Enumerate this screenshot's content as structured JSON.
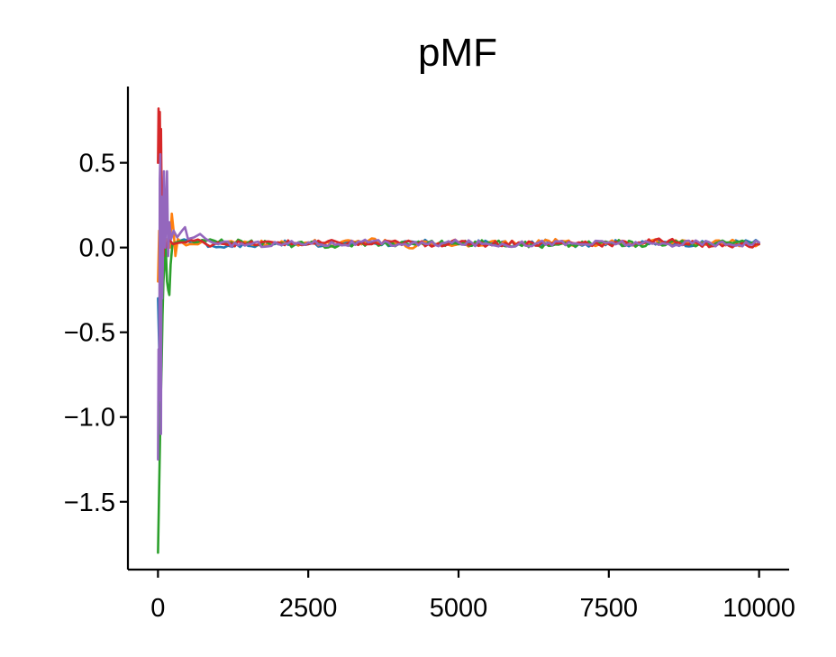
{
  "chart_data": {
    "type": "line",
    "title": "pMF",
    "xlabel": "",
    "ylabel": "",
    "xlim": [
      -500,
      10500
    ],
    "ylim": [
      -1.9,
      0.95
    ],
    "xticks": [
      0,
      2500,
      5000,
      7500,
      10000
    ],
    "xtick_labels": [
      "0",
      "2500",
      "5000",
      "7500",
      "10000"
    ],
    "yticks": [
      0.5,
      0.0,
      -0.5,
      -1.0,
      -1.5
    ],
    "ytick_labels": [
      "0.5",
      "0.0",
      "−0.5",
      "−1.0",
      "−1.5"
    ],
    "grid": false,
    "legend": "none",
    "series": [
      {
        "color": "#1f77b4",
        "points": [
          [
            0,
            -0.3
          ],
          [
            20,
            -0.6
          ],
          [
            40,
            0.1
          ],
          [
            60,
            -0.05
          ],
          [
            80,
            0.2
          ],
          [
            100,
            -0.1
          ],
          [
            130,
            0.05
          ],
          [
            160,
            0.0
          ],
          [
            200,
            0.03
          ],
          [
            300,
            0.02
          ],
          [
            500,
            0.04
          ],
          [
            700,
            0.03
          ],
          [
            900,
            0.01
          ],
          [
            1100,
            0.0
          ],
          [
            1300,
            0.02
          ],
          [
            1500,
            0.01
          ],
          [
            2000,
            0.03
          ],
          [
            2500,
            0.02
          ],
          [
            3000,
            0.02
          ],
          [
            3500,
            0.03
          ],
          [
            4000,
            0.02
          ],
          [
            4500,
            0.03
          ],
          [
            5000,
            0.02
          ],
          [
            5500,
            0.03
          ],
          [
            6000,
            0.02
          ],
          [
            6500,
            0.03
          ],
          [
            7000,
            0.02
          ],
          [
            7500,
            0.03
          ],
          [
            8000,
            0.02
          ],
          [
            8500,
            0.03
          ],
          [
            9000,
            0.02
          ],
          [
            9500,
            0.03
          ],
          [
            10000,
            0.03
          ]
        ]
      },
      {
        "color": "#ff7f0e",
        "points": [
          [
            0,
            -0.2
          ],
          [
            20,
            0.1
          ],
          [
            40,
            -0.3
          ],
          [
            60,
            0.05
          ],
          [
            80,
            -0.05
          ],
          [
            120,
            0.02
          ],
          [
            160,
            0.05
          ],
          [
            200,
            0.0
          ],
          [
            230,
            0.2
          ],
          [
            260,
            0.1
          ],
          [
            290,
            -0.05
          ],
          [
            330,
            0.05
          ],
          [
            400,
            0.03
          ],
          [
            600,
            0.02
          ],
          [
            800,
            0.04
          ],
          [
            1000,
            0.02
          ],
          [
            1500,
            0.03
          ],
          [
            2000,
            0.02
          ],
          [
            2500,
            0.03
          ],
          [
            3000,
            0.02
          ],
          [
            3500,
            0.04
          ],
          [
            4000,
            0.02
          ],
          [
            4300,
            0.01
          ],
          [
            4500,
            0.03
          ],
          [
            5000,
            0.02
          ],
          [
            5500,
            0.03
          ],
          [
            6000,
            0.02
          ],
          [
            6500,
            0.04
          ],
          [
            7000,
            0.02
          ],
          [
            7500,
            0.03
          ],
          [
            8000,
            0.02
          ],
          [
            8500,
            0.04
          ],
          [
            9000,
            0.02
          ],
          [
            9500,
            0.03
          ],
          [
            10000,
            0.02
          ]
        ]
      },
      {
        "color": "#2ca02c",
        "points": [
          [
            0,
            -1.8
          ],
          [
            15,
            -1.5
          ],
          [
            30,
            -1.2
          ],
          [
            45,
            -0.9
          ],
          [
            60,
            -0.7
          ],
          [
            75,
            -0.4
          ],
          [
            90,
            -0.2
          ],
          [
            110,
            -0.1
          ],
          [
            130,
            0.0
          ],
          [
            150,
            -0.2
          ],
          [
            170,
            -0.25
          ],
          [
            190,
            -0.28
          ],
          [
            210,
            -0.1
          ],
          [
            240,
            0.02
          ],
          [
            300,
            0.03
          ],
          [
            400,
            0.04
          ],
          [
            600,
            0.03
          ],
          [
            800,
            0.04
          ],
          [
            1000,
            0.03
          ],
          [
            1500,
            0.03
          ],
          [
            2000,
            0.02
          ],
          [
            2500,
            0.02
          ],
          [
            3000,
            0.01
          ],
          [
            3500,
            0.03
          ],
          [
            4000,
            0.02
          ],
          [
            4500,
            0.03
          ],
          [
            5000,
            0.02
          ],
          [
            5500,
            0.03
          ],
          [
            6000,
            0.02
          ],
          [
            6500,
            0.01
          ],
          [
            7000,
            0.02
          ],
          [
            7500,
            0.03
          ],
          [
            8000,
            0.02
          ],
          [
            8500,
            0.03
          ],
          [
            9000,
            0.02
          ],
          [
            9500,
            0.03
          ],
          [
            10000,
            0.02
          ]
        ]
      },
      {
        "color": "#d62728",
        "points": [
          [
            0,
            0.5
          ],
          [
            10,
            0.82
          ],
          [
            20,
            0.6
          ],
          [
            30,
            0.8
          ],
          [
            40,
            0.5
          ],
          [
            50,
            0.7
          ],
          [
            60,
            0.3
          ],
          [
            70,
            0.1
          ],
          [
            80,
            0.0
          ],
          [
            90,
            -0.05
          ],
          [
            100,
            0.05
          ],
          [
            130,
            0.0
          ],
          [
            180,
            0.05
          ],
          [
            250,
            0.02
          ],
          [
            400,
            0.03
          ],
          [
            600,
            0.04
          ],
          [
            800,
            0.02
          ],
          [
            1000,
            0.03
          ],
          [
            1500,
            0.02
          ],
          [
            2000,
            0.03
          ],
          [
            2500,
            0.02
          ],
          [
            3000,
            0.03
          ],
          [
            3500,
            0.02
          ],
          [
            4000,
            0.03
          ],
          [
            4500,
            0.02
          ],
          [
            5000,
            0.03
          ],
          [
            5500,
            0.02
          ],
          [
            6000,
            0.03
          ],
          [
            6500,
            0.02
          ],
          [
            7000,
            0.03
          ],
          [
            7500,
            0.02
          ],
          [
            8000,
            0.03
          ],
          [
            8500,
            0.04
          ],
          [
            9000,
            0.02
          ],
          [
            9500,
            0.01
          ],
          [
            10000,
            0.02
          ]
        ]
      },
      {
        "color": "#9467bd",
        "points": [
          [
            0,
            -1.25
          ],
          [
            10,
            -0.6
          ],
          [
            20,
            -0.9
          ],
          [
            30,
            0.4
          ],
          [
            40,
            0.55
          ],
          [
            50,
            -1.1
          ],
          [
            60,
            0.3
          ],
          [
            70,
            -0.3
          ],
          [
            80,
            -0.1
          ],
          [
            100,
            0.45
          ],
          [
            120,
            0.0
          ],
          [
            150,
            0.45
          ],
          [
            170,
            -0.05
          ],
          [
            190,
            0.15
          ],
          [
            220,
            0.05
          ],
          [
            260,
            0.1
          ],
          [
            320,
            0.06
          ],
          [
            400,
            0.1
          ],
          [
            450,
            0.12
          ],
          [
            500,
            0.05
          ],
          [
            600,
            0.06
          ],
          [
            700,
            0.08
          ],
          [
            800,
            0.05
          ],
          [
            900,
            0.03
          ],
          [
            1000,
            0.02
          ],
          [
            1500,
            0.02
          ],
          [
            2000,
            0.02
          ],
          [
            2500,
            0.03
          ],
          [
            3000,
            0.02
          ],
          [
            3500,
            0.03
          ],
          [
            4000,
            0.02
          ],
          [
            4500,
            0.02
          ],
          [
            5000,
            0.03
          ],
          [
            5500,
            0.02
          ],
          [
            6000,
            0.02
          ],
          [
            6500,
            0.03
          ],
          [
            7000,
            0.02
          ],
          [
            7500,
            0.03
          ],
          [
            8000,
            0.02
          ],
          [
            8500,
            0.02
          ],
          [
            9000,
            0.03
          ],
          [
            9500,
            0.02
          ],
          [
            10000,
            0.03
          ]
        ]
      }
    ]
  }
}
